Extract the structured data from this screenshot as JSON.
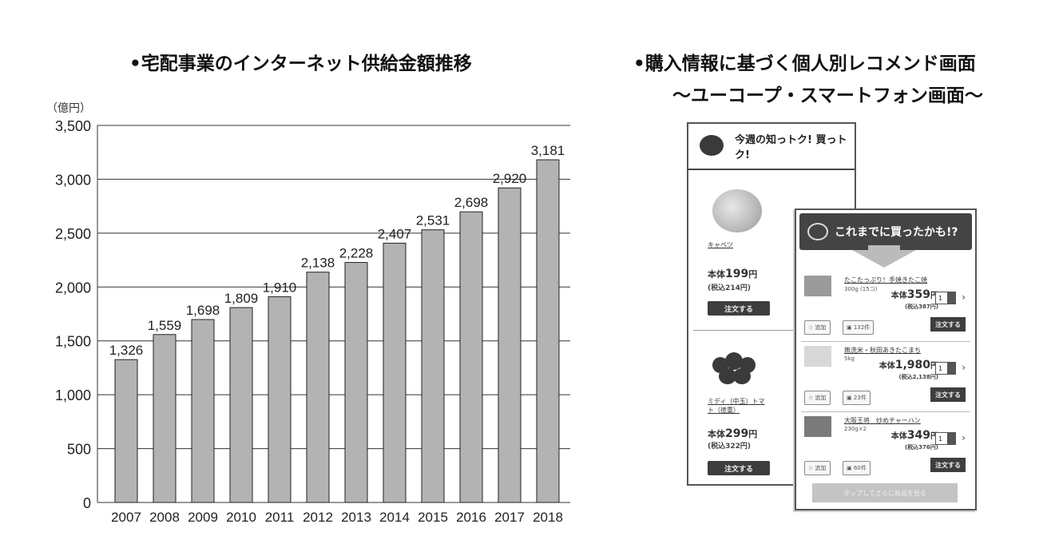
{
  "left": {
    "title": "•宅配事業のインターネット供給金額推移",
    "unit": "（億円）"
  },
  "chart_data": {
    "type": "bar",
    "title": "•宅配事業のインターネット供給金額推移",
    "ylabel": "（億円）",
    "xlabel": "",
    "categories": [
      "2007",
      "2008",
      "2009",
      "2010",
      "2011",
      "2012",
      "2013",
      "2014",
      "2015",
      "2016",
      "2017",
      "2018"
    ],
    "values": [
      1326,
      1559,
      1698,
      1809,
      1910,
      2138,
      2228,
      2407,
      2531,
      2698,
      2920,
      3181
    ],
    "value_labels": [
      "1,326",
      "1,559",
      "1,698",
      "1,809",
      "1,910",
      "2,138",
      "2,228",
      "2,407",
      "2,531",
      "2,698",
      "2,920",
      "3,181"
    ],
    "ylim": [
      0,
      3500
    ],
    "yticks": [
      0,
      500,
      1000,
      1500,
      2000,
      2500,
      3000,
      3500
    ],
    "ytick_labels": [
      "0",
      "500",
      "1,000",
      "1,500",
      "2,000",
      "2,500",
      "3,000",
      "3,500"
    ],
    "grid": true,
    "bar_color": "#b3b3b3"
  },
  "right": {
    "title_line1": "•購入情報に基づく個人別レコメンド画面",
    "title_line2": "〜ユーコープ・スマートフォン画面〜",
    "screen1": {
      "header": "今週の知っトク! 買っトク!",
      "product1_name": "キャベツ",
      "product1_price_prefix": "本体",
      "product1_price": "199",
      "product1_price_unit": "円",
      "product1_tax": "(税込214円)",
      "product2_name": "ミディ（中玉）トマト（徳重）",
      "product2_price_prefix": "本体",
      "product2_price": "299",
      "product2_price_unit": "円",
      "product2_tax": "(税込322円)",
      "order_label": "注文する"
    },
    "screen2": {
      "header": "これまでに買ったかも!?",
      "items": [
        {
          "name": "たこたっぷり！手焼きたこ焼",
          "sub": "300g (15コ)",
          "price_prefix": "本体",
          "price": "359",
          "price_unit": "円",
          "tax": "(税込387円)",
          "qty": "1",
          "add": "追加",
          "count": "132件",
          "order": "注文する"
        },
        {
          "name": "無洗米・秋田あきたこまち",
          "sub": "5kg",
          "price_prefix": "本体",
          "price": "1,980",
          "price_unit": "円",
          "tax": "(税込2,138円)",
          "qty": "1",
          "add": "追加",
          "count": "23件",
          "order": "注文する"
        },
        {
          "name": "大阪王将　炒めチャーハン",
          "sub": "230g×2",
          "price_prefix": "本体",
          "price": "349",
          "price_unit": "円",
          "tax": "(税込376円)",
          "qty": "1",
          "add": "追加",
          "count": "60件",
          "order": "注文する"
        }
      ],
      "more_label": "タップしてさらに商品を見る"
    }
  }
}
